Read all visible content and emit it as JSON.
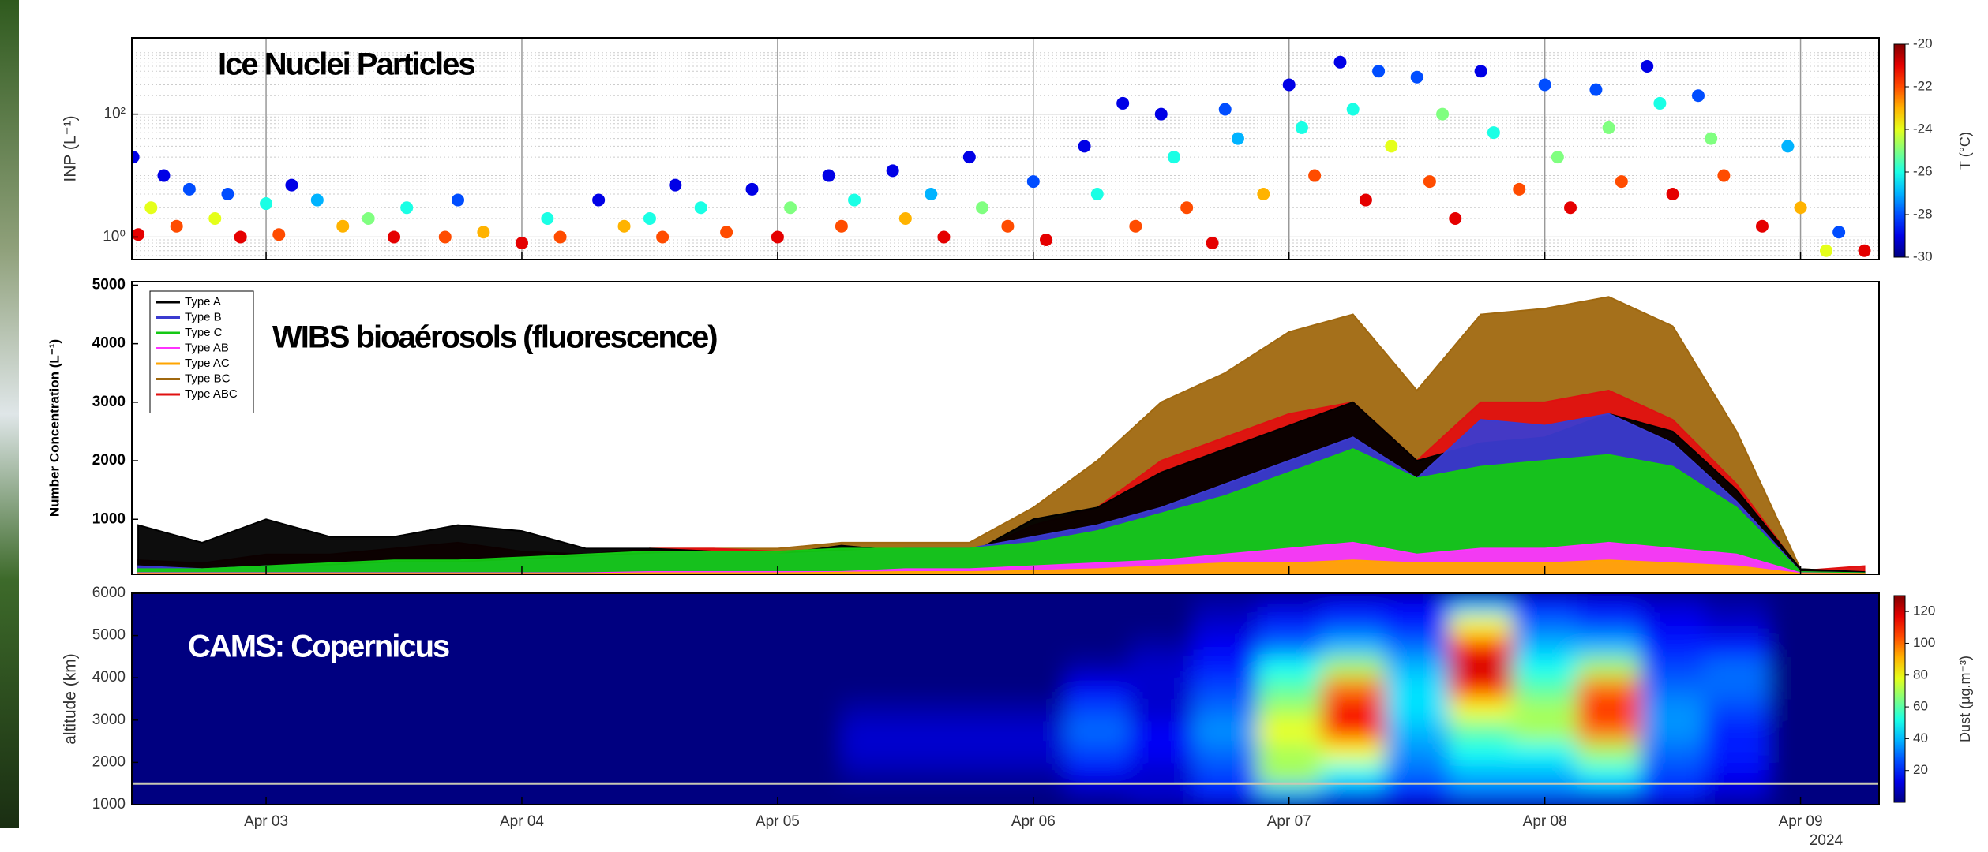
{
  "chart_data": [
    {
      "type": "scatter",
      "title": "Ice Nuclei Particles",
      "ylabel": "INP (L⁻¹)",
      "log_y": true,
      "grid": true,
      "xlim": [
        2.475,
        9.307
      ],
      "ylim": [
        0.43,
        1740
      ],
      "yticks": [
        {
          "value": 1,
          "label": "10⁰"
        },
        {
          "value": 100,
          "label": "10²"
        }
      ],
      "x": [
        2.48,
        2.5,
        2.55,
        2.6,
        2.65,
        2.7,
        2.8,
        2.85,
        2.9,
        3.0,
        3.05,
        3.1,
        3.2,
        3.3,
        3.4,
        3.5,
        3.55,
        3.7,
        3.75,
        3.85,
        4.0,
        4.1,
        4.15,
        4.3,
        4.4,
        4.5,
        4.55,
        4.6,
        4.7,
        4.8,
        4.9,
        5.0,
        5.05,
        5.2,
        5.25,
        5.3,
        5.45,
        5.5,
        5.6,
        5.65,
        5.75,
        5.8,
        5.9,
        6.0,
        6.05,
        6.2,
        6.25,
        6.35,
        6.4,
        6.5,
        6.55,
        6.6,
        6.7,
        6.75,
        6.8,
        6.9,
        7.0,
        7.05,
        7.1,
        7.2,
        7.25,
        7.3,
        7.35,
        7.4,
        7.5,
        7.55,
        7.6,
        7.65,
        7.75,
        7.8,
        7.9,
        8.0,
        8.05,
        8.1,
        8.2,
        8.25,
        8.3,
        8.4,
        8.45,
        8.5,
        8.6,
        8.65,
        8.7,
        8.85,
        8.95,
        9.0,
        9.1,
        9.15,
        9.25
      ],
      "values": [
        20,
        1.1,
        3,
        10,
        1.5,
        6,
        2,
        5,
        1,
        3.5,
        1.1,
        7,
        4,
        1.5,
        2,
        1,
        3,
        1,
        4,
        1.2,
        0.8,
        2,
        1,
        4,
        1.5,
        2,
        1,
        7,
        3,
        1.2,
        6,
        1,
        3,
        10,
        1.5,
        4,
        12,
        2,
        5,
        1,
        20,
        3,
        1.5,
        8,
        0.9,
        30,
        5,
        150,
        1.5,
        100,
        20,
        3,
        0.8,
        120,
        40,
        5,
        300,
        60,
        10,
        700,
        120,
        4,
        500,
        30,
        400,
        8,
        100,
        2,
        500,
        50,
        6,
        300,
        20,
        3,
        250,
        60,
        8,
        600,
        150,
        5,
        200,
        40,
        10,
        1.5,
        30,
        3,
        0.6,
        1.2,
        0.6
      ],
      "temperature": [
        -29,
        -21,
        -24,
        -29,
        -22,
        -28,
        -24,
        -28,
        -21,
        -26,
        -22,
        -29,
        -27,
        -23,
        -25,
        -21,
        -26,
        -22,
        -28,
        -23,
        -21,
        -26,
        -22,
        -29,
        -23,
        -26,
        -22,
        -29,
        -26,
        -22,
        -29,
        -21,
        -25,
        -29,
        -22,
        -26,
        -29,
        -23,
        -27,
        -21,
        -29,
        -25,
        -22,
        -28,
        -21,
        -29,
        -26,
        -29,
        -22,
        -29,
        -26,
        -22,
        -21,
        -28,
        -27,
        -23,
        -29,
        -26,
        -22,
        -29,
        -26,
        -21,
        -28,
        -24,
        -28,
        -22,
        -25,
        -21,
        -29,
        -26,
        -22,
        -28,
        -25,
        -21,
        -28,
        -25,
        -22,
        -29,
        -26,
        -21,
        -28,
        -25,
        -22,
        -21,
        -27,
        -23,
        -24,
        -28,
        -21
      ],
      "colorbar": {
        "label": "T (°C)",
        "lim": [
          -30,
          -20
        ],
        "ticks": [
          -20,
          -22,
          -24,
          -26,
          -28,
          -30
        ]
      }
    },
    {
      "type": "line",
      "title": "WIBS bioaérosols (fluorescence)",
      "ylabel": "Number Concentration (L⁻¹)",
      "legend": "upper left",
      "xlim": [
        2.475,
        9.307
      ],
      "ylim": [
        60,
        5060
      ],
      "yticks": [
        1000,
        2000,
        3000,
        4000,
        5000
      ],
      "x": [
        2.5,
        2.75,
        3.0,
        3.25,
        3.5,
        3.75,
        4.0,
        4.25,
        4.5,
        4.75,
        5.0,
        5.25,
        5.5,
        5.75,
        6.0,
        6.25,
        6.5,
        6.75,
        7.0,
        7.25,
        7.5,
        7.75,
        8.0,
        8.25,
        8.5,
        8.75,
        9.0,
        9.25
      ],
      "series": [
        {
          "name": "Type A",
          "color": "#000000",
          "values": [
            900,
            600,
            1000,
            700,
            700,
            900,
            800,
            500,
            500,
            450,
            400,
            550,
            450,
            400,
            1000,
            1200,
            1800,
            2200,
            2600,
            3000,
            2000,
            2300,
            2400,
            2800,
            2500,
            1500,
            150,
            100
          ]
        },
        {
          "name": "Type B",
          "color": "#3b3bd0",
          "values": [
            200,
            150,
            200,
            200,
            250,
            250,
            300,
            350,
            400,
            450,
            400,
            450,
            500,
            500,
            700,
            900,
            1200,
            1600,
            2000,
            2400,
            1700,
            2700,
            2600,
            2800,
            2300,
            1300,
            100,
            80
          ]
        },
        {
          "name": "Type C",
          "color": "#14c814",
          "values": [
            150,
            150,
            200,
            250,
            300,
            300,
            350,
            400,
            450,
            450,
            450,
            500,
            500,
            500,
            600,
            800,
            1100,
            1400,
            1800,
            2200,
            1700,
            1900,
            2000,
            2100,
            1900,
            1200,
            100,
            80
          ]
        },
        {
          "name": "Type AB",
          "color": "#ff33ff",
          "values": [
            80,
            80,
            80,
            80,
            80,
            80,
            80,
            80,
            100,
            100,
            100,
            100,
            150,
            150,
            200,
            250,
            300,
            400,
            500,
            600,
            400,
            500,
            500,
            600,
            500,
            400,
            80,
            70
          ]
        },
        {
          "name": "Type AC",
          "color": "#ffa500",
          "values": [
            70,
            70,
            70,
            70,
            70,
            70,
            70,
            70,
            80,
            80,
            80,
            90,
            100,
            100,
            120,
            150,
            200,
            250,
            250,
            300,
            250,
            250,
            250,
            300,
            250,
            200,
            70,
            70
          ]
        },
        {
          "name": "Type BC",
          "color": "#a0680f",
          "values": [
            200,
            150,
            200,
            200,
            300,
            300,
            350,
            400,
            500,
            500,
            500,
            600,
            600,
            600,
            1200,
            2000,
            3000,
            3500,
            4200,
            4500,
            3200,
            4500,
            4600,
            4800,
            4300,
            2500,
            150,
            100
          ]
        },
        {
          "name": "Type ABC",
          "color": "#e01010",
          "values": [
            300,
            250,
            400,
            400,
            500,
            600,
            450,
            400,
            500,
            500,
            450,
            500,
            450,
            400,
            900,
            1200,
            2000,
            2400,
            2800,
            3000,
            2000,
            3000,
            3000,
            3200,
            2700,
            1600,
            120,
            200
          ]
        }
      ]
    },
    {
      "type": "heatmap",
      "title": "CAMS: Copernicus",
      "ylabel": "altitude (km)",
      "annotation": "2024",
      "xlim": [
        2.475,
        9.307
      ],
      "ylim": [
        1000,
        6000
      ],
      "yticks": [
        1000,
        2000,
        3000,
        4000,
        5000,
        6000
      ],
      "xticks": [
        {
          "value": 3,
          "label": "Apr 03"
        },
        {
          "value": 4,
          "label": "Apr 04"
        },
        {
          "value": 5,
          "label": "Apr 05"
        },
        {
          "value": 6,
          "label": "Apr 06"
        },
        {
          "value": 7,
          "label": "Apr 07"
        },
        {
          "value": 8,
          "label": "Apr 08"
        },
        {
          "value": 9,
          "label": "Apr 09"
        }
      ],
      "reference_line": 1500,
      "x": [
        2.5,
        4.5,
        6.0,
        6.25,
        6.5,
        6.75,
        7.0,
        7.25,
        7.5,
        7.75,
        8.0,
        8.25,
        8.5,
        8.75,
        9.0
      ],
      "y": [
        1250,
        1750,
        2250,
        2750,
        3250,
        3750,
        4250,
        4750,
        5250,
        5750
      ],
      "values": [
        [
          0,
          0,
          0,
          5,
          10,
          20,
          40,
          30,
          20,
          30,
          30,
          30,
          20,
          10,
          0
        ],
        [
          0,
          0,
          5,
          15,
          10,
          25,
          70,
          50,
          30,
          40,
          40,
          50,
          25,
          15,
          0
        ],
        [
          0,
          0,
          10,
          25,
          15,
          30,
          70,
          80,
          35,
          50,
          50,
          70,
          30,
          20,
          0
        ],
        [
          0,
          0,
          10,
          30,
          15,
          35,
          80,
          110,
          40,
          60,
          70,
          100,
          35,
          20,
          0
        ],
        [
          0,
          0,
          5,
          25,
          10,
          30,
          70,
          115,
          45,
          80,
          70,
          110,
          35,
          25,
          0
        ],
        [
          0,
          0,
          0,
          15,
          10,
          25,
          60,
          100,
          45,
          110,
          60,
          100,
          30,
          30,
          0
        ],
        [
          0,
          0,
          0,
          5,
          10,
          20,
          50,
          70,
          40,
          120,
          50,
          70,
          25,
          30,
          0
        ],
        [
          0,
          0,
          0,
          0,
          5,
          15,
          30,
          40,
          30,
          110,
          40,
          40,
          20,
          20,
          0
        ],
        [
          0,
          0,
          0,
          0,
          0,
          10,
          20,
          25,
          20,
          80,
          30,
          25,
          15,
          10,
          0
        ],
        [
          0,
          0,
          0,
          0,
          0,
          5,
          10,
          15,
          15,
          40,
          20,
          15,
          10,
          5,
          0
        ]
      ],
      "colorbar": {
        "label": "Dust (µg.m⁻³)",
        "lim": [
          0,
          130
        ],
        "ticks": [
          20,
          40,
          60,
          80,
          100,
          120
        ]
      }
    }
  ]
}
